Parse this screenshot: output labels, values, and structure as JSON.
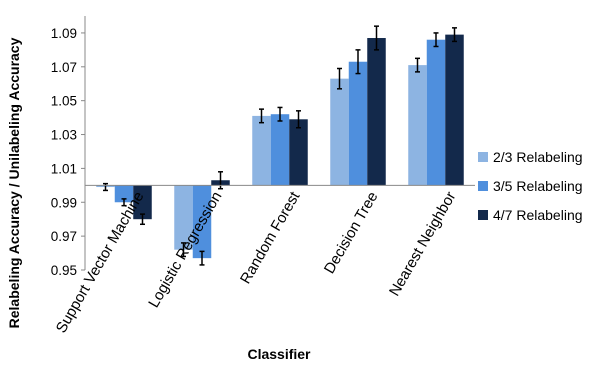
{
  "chart_data": {
    "type": "bar",
    "xlabel": "Classifier",
    "ylabel": "Relabeling Accuracy / Unilabeling Accuracy",
    "ylim": [
      0.95,
      1.1
    ],
    "baseline": 1.0,
    "yticks": [
      "0.95",
      "0.97",
      "0.99",
      "1.01",
      "1.03",
      "1.05",
      "1.07",
      "1.09"
    ],
    "grid": false,
    "legend_position": "right",
    "categories": [
      "Support Vector Machine",
      "Logistic Regression",
      "Random Forest",
      "Decision Tree",
      "Nearest Neighbor"
    ],
    "series": [
      {
        "name": "2/3 Relabeling",
        "color": "#8db4e2",
        "values": [
          0.999,
          0.962,
          1.041,
          1.063,
          1.071
        ],
        "errors": [
          0.002,
          0.004,
          0.004,
          0.006,
          0.004
        ]
      },
      {
        "name": "3/5 Relabeling",
        "color": "#4f8fdd",
        "values": [
          0.99,
          0.957,
          1.042,
          1.073,
          1.086
        ],
        "errors": [
          0.002,
          0.004,
          0.004,
          0.007,
          0.004
        ]
      },
      {
        "name": "4/7 Relabeling",
        "color": "#13294b",
        "values": [
          0.98,
          1.003,
          1.039,
          1.087,
          1.089
        ],
        "errors": [
          0.003,
          0.005,
          0.005,
          0.007,
          0.004
        ]
      }
    ]
  }
}
